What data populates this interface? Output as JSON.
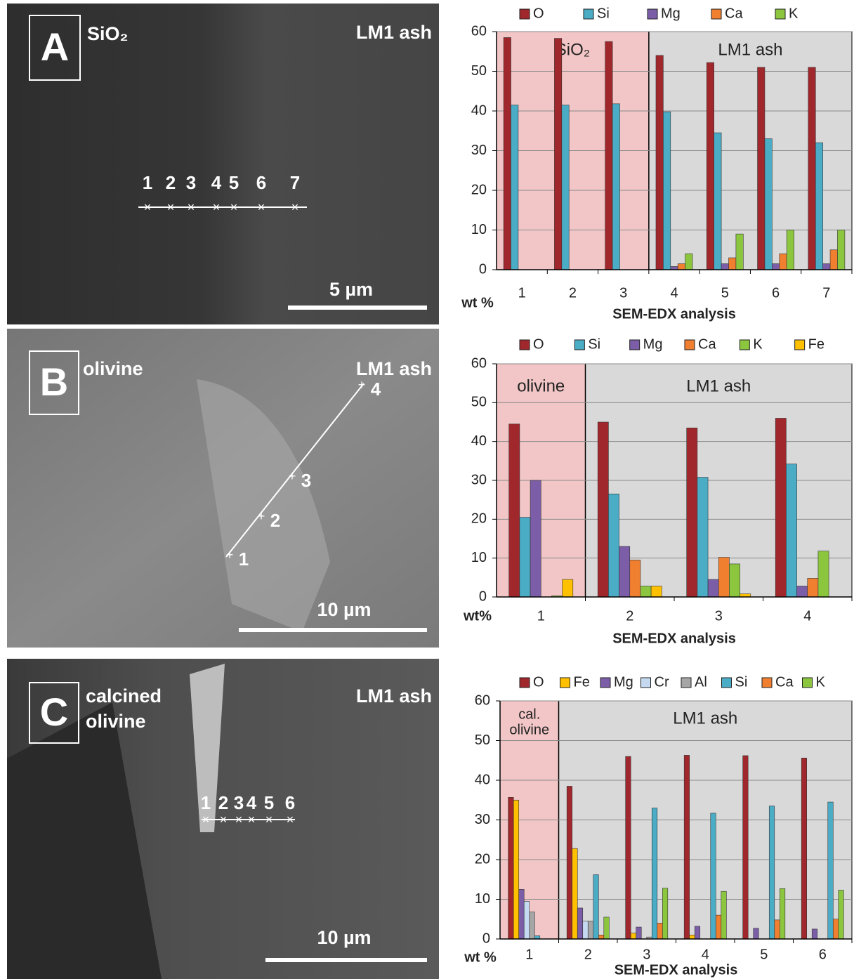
{
  "panels": [
    {
      "letter": "A",
      "material": [
        "SiO₂"
      ],
      "matrix": "LM1 ash",
      "scale": "5 µm",
      "points": [
        "1",
        "2",
        "3",
        "4",
        "5",
        "6",
        "7"
      ]
    },
    {
      "letter": "B",
      "material": [
        "olivine"
      ],
      "matrix": "LM1 ash",
      "scale": "10 µm",
      "points": [
        "1",
        "2",
        "3",
        "4"
      ]
    },
    {
      "letter": "C",
      "material": [
        "calcined",
        "olivine"
      ],
      "matrix": "LM1 ash",
      "scale": "10 µm",
      "points": [
        "1",
        "2",
        "3",
        "4",
        "5",
        "6"
      ]
    }
  ],
  "chart_data": [
    {
      "type": "bar",
      "ylabel": "wt %",
      "xlabel": "SEM-EDX analysis",
      "categories": [
        "1",
        "2",
        "3",
        "4",
        "5",
        "6",
        "7"
      ],
      "ylim": [
        0,
        60
      ],
      "yticks": [
        0,
        10,
        20,
        30,
        40,
        50,
        60
      ],
      "grid": true,
      "regions": [
        {
          "label": [
            "SiO₂"
          ],
          "start": "1",
          "end": "3",
          "color": "#f2c6c6"
        },
        {
          "label": [
            "LM1 ash"
          ],
          "start": "4",
          "end": "7",
          "color": "#d9d9d9"
        }
      ],
      "series": [
        {
          "name": "O",
          "color": "#a0282d",
          "values": [
            58.5,
            58.3,
            57.5,
            54,
            52.2,
            51,
            51
          ]
        },
        {
          "name": "Si",
          "color": "#4bacc6",
          "values": [
            41.5,
            41.5,
            41.8,
            39.8,
            34.5,
            33,
            32
          ]
        },
        {
          "name": "Mg",
          "color": "#7b5ea7",
          "values": [
            0,
            0,
            0,
            0.8,
            1.5,
            1.5,
            1.5
          ]
        },
        {
          "name": "Ca",
          "color": "#f07f30",
          "values": [
            0,
            0,
            0,
            1.5,
            3,
            4,
            5
          ]
        },
        {
          "name": "K",
          "color": "#8cc63f",
          "values": [
            0,
            0,
            0,
            4,
            9,
            10,
            10
          ]
        }
      ]
    },
    {
      "type": "bar",
      "ylabel": "wt%",
      "xlabel": "SEM-EDX analysis",
      "categories": [
        "1",
        "2",
        "3",
        "4"
      ],
      "ylim": [
        0,
        60
      ],
      "yticks": [
        0,
        10,
        20,
        30,
        40,
        50,
        60
      ],
      "grid": true,
      "regions": [
        {
          "label": [
            "olivine"
          ],
          "start": "1",
          "end": "1",
          "color": "#f2c6c6"
        },
        {
          "label": [
            "LM1 ash"
          ],
          "start": "2",
          "end": "4",
          "color": "#d9d9d9"
        }
      ],
      "series": [
        {
          "name": "O",
          "color": "#a0282d",
          "values": [
            44.5,
            45,
            43.5,
            46
          ]
        },
        {
          "name": "Si",
          "color": "#4bacc6",
          "values": [
            20.5,
            26.5,
            30.8,
            34.2
          ]
        },
        {
          "name": "Mg",
          "color": "#7b5ea7",
          "values": [
            30,
            13,
            4.5,
            2.8
          ]
        },
        {
          "name": "Ca",
          "color": "#f07f30",
          "values": [
            0,
            9.5,
            10.2,
            4.8
          ]
        },
        {
          "name": "K",
          "color": "#8cc63f",
          "values": [
            0.3,
            2.8,
            8.5,
            11.8
          ]
        },
        {
          "name": "Fe",
          "color": "#ffc000",
          "values": [
            4.5,
            2.8,
            0.8,
            0
          ]
        }
      ]
    },
    {
      "type": "bar",
      "ylabel": "wt %",
      "xlabel": "SEM-EDX analysis",
      "categories": [
        "1",
        "2",
        "3",
        "4",
        "5",
        "6"
      ],
      "ylim": [
        0,
        60
      ],
      "yticks": [
        0,
        10,
        20,
        30,
        40,
        50,
        60
      ],
      "grid": true,
      "regions": [
        {
          "label": [
            "cal.",
            "olivine"
          ],
          "start": "1",
          "end": "1",
          "color": "#f2c6c6"
        },
        {
          "label": [
            "LM1 ash"
          ],
          "start": "2",
          "end": "6",
          "color": "#d9d9d9"
        }
      ],
      "series": [
        {
          "name": "O",
          "color": "#a0282d",
          "values": [
            35.7,
            38.5,
            46,
            46.3,
            46.2,
            45.6
          ]
        },
        {
          "name": "Fe",
          "color": "#ffc000",
          "values": [
            35,
            22.8,
            1.5,
            1,
            0,
            0
          ]
        },
        {
          "name": "Mg",
          "color": "#7b5ea7",
          "values": [
            12.5,
            7.8,
            3,
            3.2,
            2.7,
            2.5
          ]
        },
        {
          "name": "Cr",
          "color": "#c5d9f1",
          "values": [
            9.5,
            4.5,
            0,
            0,
            0,
            0
          ]
        },
        {
          "name": "Al",
          "color": "#a6a6a6",
          "values": [
            6.8,
            4.5,
            0.5,
            0,
            0,
            0
          ]
        },
        {
          "name": "Si",
          "color": "#4bacc6",
          "values": [
            0.8,
            16.2,
            33,
            31.7,
            33.5,
            34.5
          ]
        },
        {
          "name": "Ca",
          "color": "#f07f30",
          "values": [
            0,
            1,
            4,
            6,
            4.8,
            5
          ]
        },
        {
          "name": "K",
          "color": "#8cc63f",
          "values": [
            0,
            5.5,
            12.8,
            12,
            12.7,
            12.3
          ]
        }
      ]
    }
  ]
}
